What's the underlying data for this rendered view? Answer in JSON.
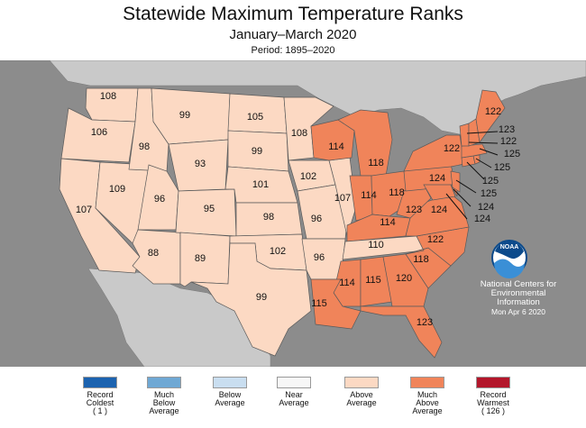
{
  "header": {
    "title": "Statewide Maximum Temperature Ranks",
    "subtitle": "January–March 2020",
    "period": "Period: 1895–2020"
  },
  "colors": {
    "ocean": "#8c8c8c",
    "land_outside": "#c9c9c9",
    "border": "#5a5a5a",
    "above_average": "#fcd9c3",
    "much_above_average": "#f0845a"
  },
  "states": [
    {
      "abbr": "WA",
      "rank": "108",
      "category": "above"
    },
    {
      "abbr": "OR",
      "rank": "106",
      "category": "above"
    },
    {
      "abbr": "CA",
      "rank": "107",
      "category": "above"
    },
    {
      "abbr": "NV",
      "rank": "109",
      "category": "above"
    },
    {
      "abbr": "ID",
      "rank": "98",
      "category": "above"
    },
    {
      "abbr": "MT",
      "rank": "99",
      "category": "above"
    },
    {
      "abbr": "WY",
      "rank": "93",
      "category": "above"
    },
    {
      "abbr": "UT",
      "rank": "96",
      "category": "above"
    },
    {
      "abbr": "AZ",
      "rank": "88",
      "category": "above"
    },
    {
      "abbr": "CO",
      "rank": "95",
      "category": "above"
    },
    {
      "abbr": "NM",
      "rank": "89",
      "category": "above"
    },
    {
      "abbr": "ND",
      "rank": "105",
      "category": "above"
    },
    {
      "abbr": "SD",
      "rank": "99",
      "category": "above"
    },
    {
      "abbr": "NE",
      "rank": "101",
      "category": "above"
    },
    {
      "abbr": "KS",
      "rank": "98",
      "category": "above"
    },
    {
      "abbr": "OK",
      "rank": "102",
      "category": "above"
    },
    {
      "abbr": "TX",
      "rank": "99",
      "category": "above"
    },
    {
      "abbr": "MN",
      "rank": "108",
      "category": "above"
    },
    {
      "abbr": "IA",
      "rank": "102",
      "category": "above"
    },
    {
      "abbr": "MO",
      "rank": "96",
      "category": "above"
    },
    {
      "abbr": "AR",
      "rank": "96",
      "category": "above"
    },
    {
      "abbr": "IL",
      "rank": "107",
      "category": "above"
    },
    {
      "abbr": "TN",
      "rank": "110",
      "category": "above"
    },
    {
      "abbr": "WI",
      "rank": "114",
      "category": "much_above"
    },
    {
      "abbr": "MI",
      "rank": "118",
      "category": "much_above"
    },
    {
      "abbr": "IN",
      "rank": "114",
      "category": "much_above"
    },
    {
      "abbr": "OH",
      "rank": "118",
      "category": "much_above"
    },
    {
      "abbr": "KY",
      "rank": "114",
      "category": "much_above"
    },
    {
      "abbr": "WV",
      "rank": "123",
      "category": "much_above"
    },
    {
      "abbr": "VA",
      "rank": "124",
      "category": "much_above"
    },
    {
      "abbr": "PA",
      "rank": "124",
      "category": "much_above"
    },
    {
      "abbr": "NY",
      "rank": "122",
      "category": "much_above"
    },
    {
      "abbr": "ME",
      "rank": "122",
      "category": "much_above"
    },
    {
      "abbr": "NC",
      "rank": "122",
      "category": "much_above"
    },
    {
      "abbr": "SC",
      "rank": "118",
      "category": "much_above"
    },
    {
      "abbr": "GA",
      "rank": "120",
      "category": "much_above"
    },
    {
      "abbr": "AL",
      "rank": "115",
      "category": "much_above"
    },
    {
      "abbr": "MS",
      "rank": "114",
      "category": "much_above"
    },
    {
      "abbr": "LA",
      "rank": "115",
      "category": "much_above"
    },
    {
      "abbr": "FL",
      "rank": "123",
      "category": "much_above"
    },
    {
      "abbr": "NH",
      "rank": "123",
      "category": "much_above"
    },
    {
      "abbr": "VT",
      "rank": "122",
      "category": "much_above"
    },
    {
      "abbr": "MA",
      "rank": "125",
      "category": "much_above"
    },
    {
      "abbr": "RI",
      "rank": "125",
      "category": "much_above"
    },
    {
      "abbr": "CT",
      "rank": "125",
      "category": "much_above"
    },
    {
      "abbr": "NJ",
      "rank": "125",
      "category": "much_above"
    },
    {
      "abbr": "DE",
      "rank": "124",
      "category": "much_above"
    },
    {
      "abbr": "MD",
      "rank": "124",
      "category": "much_above"
    }
  ],
  "noaa": {
    "logo_text": "NOAA",
    "org_line1": "National Centers for",
    "org_line2": "Environmental",
    "org_line3": "Information",
    "date": "Mon Apr  6 2020"
  },
  "legend": [
    {
      "label": "Record\nColdest\n( 1 )",
      "color": "#1c63b0"
    },
    {
      "label": "Much\nBelow\nAverage",
      "color": "#6fa8d4"
    },
    {
      "label": "Below\nAverage",
      "color": "#c9def0"
    },
    {
      "label": "Near\nAverage",
      "color": "#f7f7f7"
    },
    {
      "label": "Above\nAverage",
      "color": "#fcd9c3"
    },
    {
      "label": "Much\nAbove\nAverage",
      "color": "#f0845a"
    },
    {
      "label": "Record\nWarmest\n( 126 )",
      "color": "#b3172b"
    }
  ]
}
